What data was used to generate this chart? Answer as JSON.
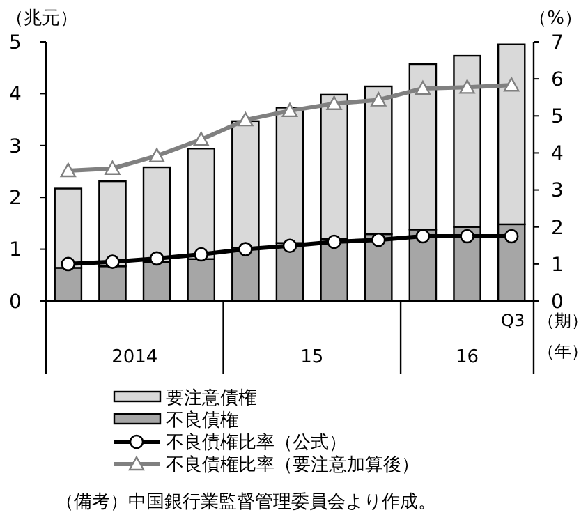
{
  "chart_data": {
    "type": "bar",
    "stacked": true,
    "ylabel": "（兆元）",
    "y2label": "（%）",
    "xlabel": "（期）",
    "categories": [
      null,
      null,
      null,
      null,
      null,
      null,
      null,
      null,
      null,
      null,
      "Q3"
    ],
    "series": [
      {
        "name": "不良債権",
        "color": "#a6a6a6",
        "values": [
          0.64,
          0.67,
          0.75,
          0.81,
          1.03,
          1.12,
          1.2,
          1.29,
          1.38,
          1.43,
          1.48
        ]
      },
      {
        "name": "要注意債権",
        "color": "#d9d9d9",
        "values": [
          1.53,
          1.64,
          1.83,
          2.13,
          2.44,
          2.61,
          2.78,
          2.85,
          3.19,
          3.3,
          3.47
        ]
      },
      {
        "name": "不良債権比率（公式）",
        "type": "line",
        "axis": "y2",
        "color": "#000000",
        "marker": "circle",
        "values": [
          1.0,
          1.06,
          1.15,
          1.26,
          1.4,
          1.49,
          1.6,
          1.65,
          1.75,
          1.75,
          1.75
        ]
      },
      {
        "name": "不良債権比率（要注意加算後）",
        "type": "line",
        "axis": "y2",
        "color": "#808080",
        "marker": "triangle",
        "values": [
          3.52,
          3.58,
          3.92,
          4.36,
          4.89,
          5.14,
          5.33,
          5.43,
          5.74,
          5.77,
          5.83
        ]
      }
    ],
    "ylim": [
      0,
      5
    ],
    "yticks": [
      0,
      1,
      2,
      3,
      4,
      5
    ],
    "y2lim": [
      0,
      7
    ],
    "y2ticks": [
      0,
      1,
      2,
      3,
      4,
      5,
      6,
      7
    ],
    "grid": false,
    "legend": "bottom",
    "annotations": [
      "2014",
      "15",
      "16",
      "（年）",
      "（備考）中国銀行業監督管理委員会より作成。"
    ]
  }
}
